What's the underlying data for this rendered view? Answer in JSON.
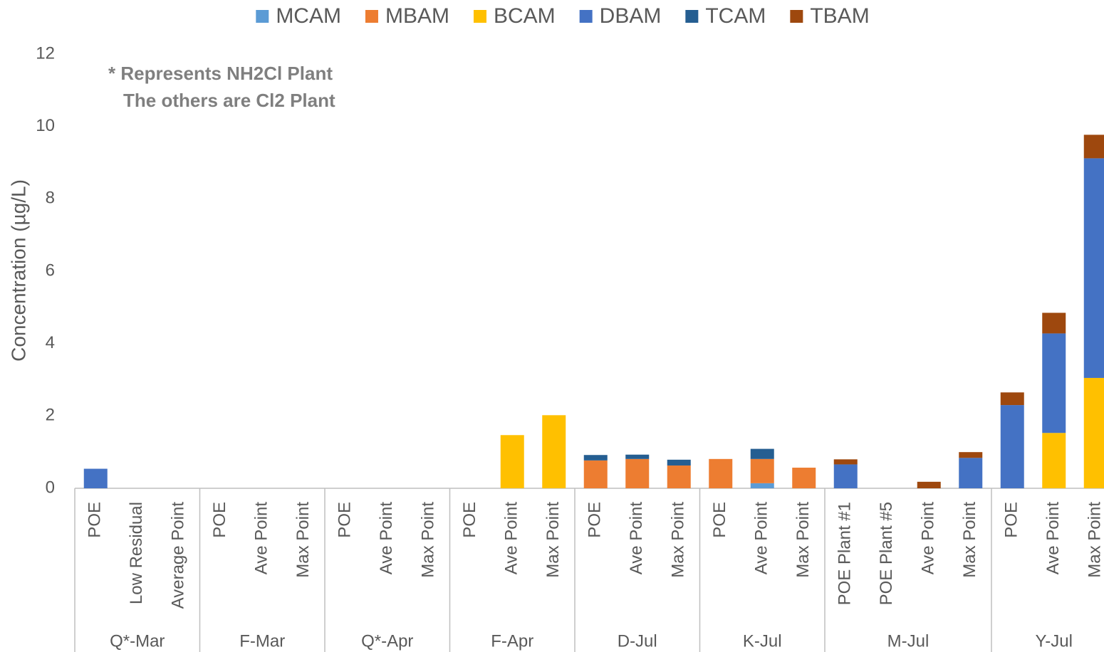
{
  "chart_data": {
    "type": "stacked_bar",
    "y_label": "Concentration (µg/L)",
    "annotations": [
      "* Represents NH2Cl Plant",
      "The others are Cl2 Plant"
    ],
    "groups": [
      {
        "label": "Q*-Mar",
        "categories": [
          "POE",
          "Low Residual",
          "Average Point"
        ]
      },
      {
        "label": "F-Mar",
        "categories": [
          "POE",
          "Ave Point",
          "Max Point"
        ]
      },
      {
        "label": "Q*-Apr",
        "categories": [
          "POE",
          "Ave Point",
          "Max Point"
        ]
      },
      {
        "label": "F-Apr",
        "categories": [
          "POE",
          "Ave Point",
          "Max Point"
        ]
      },
      {
        "label": "D-Jul",
        "categories": [
          "POE",
          "Ave Point",
          "Max Point"
        ]
      },
      {
        "label": "K-Jul",
        "categories": [
          "POE",
          "Ave Point",
          "Max Point"
        ]
      },
      {
        "label": "M-Jul",
        "categories": [
          "POE Plant #1",
          "POE Plant #5",
          "Ave Point",
          "Max Point"
        ]
      },
      {
        "label": "Y-Jul",
        "categories": [
          "POE",
          "Ave Point",
          "Max Point"
        ]
      }
    ],
    "series": [
      {
        "name": "MCAM",
        "color": "#5b9bd5",
        "values": [
          0,
          0,
          0,
          0,
          0,
          0,
          0,
          0,
          0,
          0,
          0,
          0,
          0,
          0,
          0,
          0,
          0.14,
          0,
          0,
          0,
          0,
          0,
          0,
          0,
          0
        ]
      },
      {
        "name": "MBAM",
        "color": "#ed7d31",
        "values": [
          0,
          0,
          0,
          0,
          0,
          0,
          0,
          0,
          0,
          0,
          0,
          0,
          0.77,
          0.81,
          0.63,
          0.81,
          0.67,
          0.57,
          0,
          0,
          0,
          0,
          0,
          0,
          0
        ]
      },
      {
        "name": "BCAM",
        "color": "#ffc000",
        "values": [
          0,
          0,
          0,
          0,
          0,
          0,
          0,
          0,
          0,
          0,
          1.47,
          2.02,
          0,
          0,
          0,
          0,
          0,
          0,
          0,
          0,
          0,
          0,
          0,
          1.53,
          3.05
        ]
      },
      {
        "name": "DBAM",
        "color": "#4472c4",
        "values": [
          0.54,
          0,
          0,
          0,
          0,
          0,
          0,
          0,
          0,
          0,
          0,
          0,
          0,
          0,
          0,
          0,
          0,
          0,
          0.66,
          0,
          0,
          0.84,
          2.3,
          2.75,
          6.07
        ]
      },
      {
        "name": "TCAM",
        "color": "#255e91",
        "values": [
          0,
          0,
          0,
          0,
          0,
          0,
          0,
          0,
          0,
          0,
          0,
          0,
          0.15,
          0.12,
          0.16,
          0,
          0.28,
          0,
          0,
          0,
          0,
          0,
          0,
          0,
          0
        ]
      },
      {
        "name": "TBAM",
        "color": "#9e480e",
        "values": [
          0,
          0,
          0,
          0,
          0,
          0,
          0,
          0,
          0,
          0,
          0,
          0,
          0,
          0,
          0,
          0,
          0,
          0,
          0.14,
          0,
          0.18,
          0.16,
          0.35,
          0.57,
          0.65
        ]
      }
    ],
    "ylim": [
      0,
      12
    ],
    "yticks": [
      0,
      2,
      4,
      6,
      8,
      10,
      12
    ],
    "legend": "top"
  }
}
